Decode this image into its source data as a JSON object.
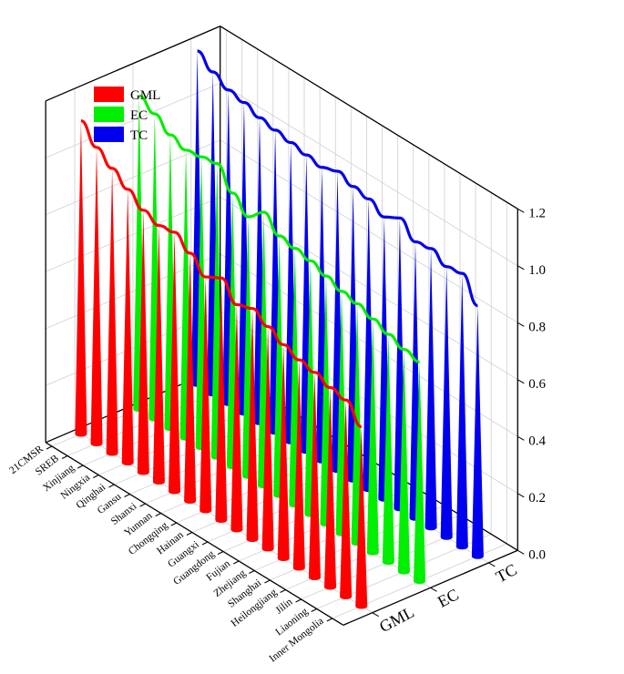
{
  "chart_data": {
    "type": "3d-cone",
    "title": "",
    "categories": [
      "21CMSR",
      "SREB",
      "Xinjiang",
      "Ningxia",
      "Qinghai",
      "Gansu",
      "Shanxi",
      "Yunnan",
      "Chongqing",
      "Hainan",
      "Guangxi",
      "Guangdong",
      "Fujian",
      "Zhejiang",
      "Shanghai",
      "Heilongjiang",
      "Jilin",
      "Liaoning",
      "Inner Mongolia"
    ],
    "series": [
      {
        "name": "GML",
        "color": "#ff0000",
        "values": [
          1.1,
          1.04,
          1.0,
          0.96,
          0.92,
          0.9,
          0.91,
          0.87,
          0.82,
          0.85,
          0.79,
          0.81,
          0.78,
          0.75,
          0.73,
          0.72,
          0.7,
          0.69,
          0.63
        ]
      },
      {
        "name": "EC",
        "color": "#00ee00",
        "values": [
          1.1,
          1.07,
          1.03,
          1.01,
          1.02,
          1.03,
          0.96,
          0.91,
          0.96,
          0.91,
          0.9,
          0.89,
          0.87,
          0.85,
          0.84,
          0.82,
          0.8,
          0.78,
          0.77
        ]
      },
      {
        "name": "TC",
        "color": "#0000ee",
        "values": [
          1.17,
          1.13,
          1.1,
          1.09,
          1.07,
          1.06,
          1.05,
          1.04,
          1.03,
          1.05,
          1.03,
          1.02,
          0.99,
          1.02,
          0.97,
          0.98,
          0.95,
          0.96,
          0.88
        ]
      }
    ],
    "zlim": [
      0.0,
      1.2
    ],
    "z_ticks": [
      "0.0",
      "0.2",
      "0.4",
      "0.6",
      "0.8",
      "1.0",
      "1.2"
    ],
    "grid": true,
    "legend_position": "top-left"
  }
}
